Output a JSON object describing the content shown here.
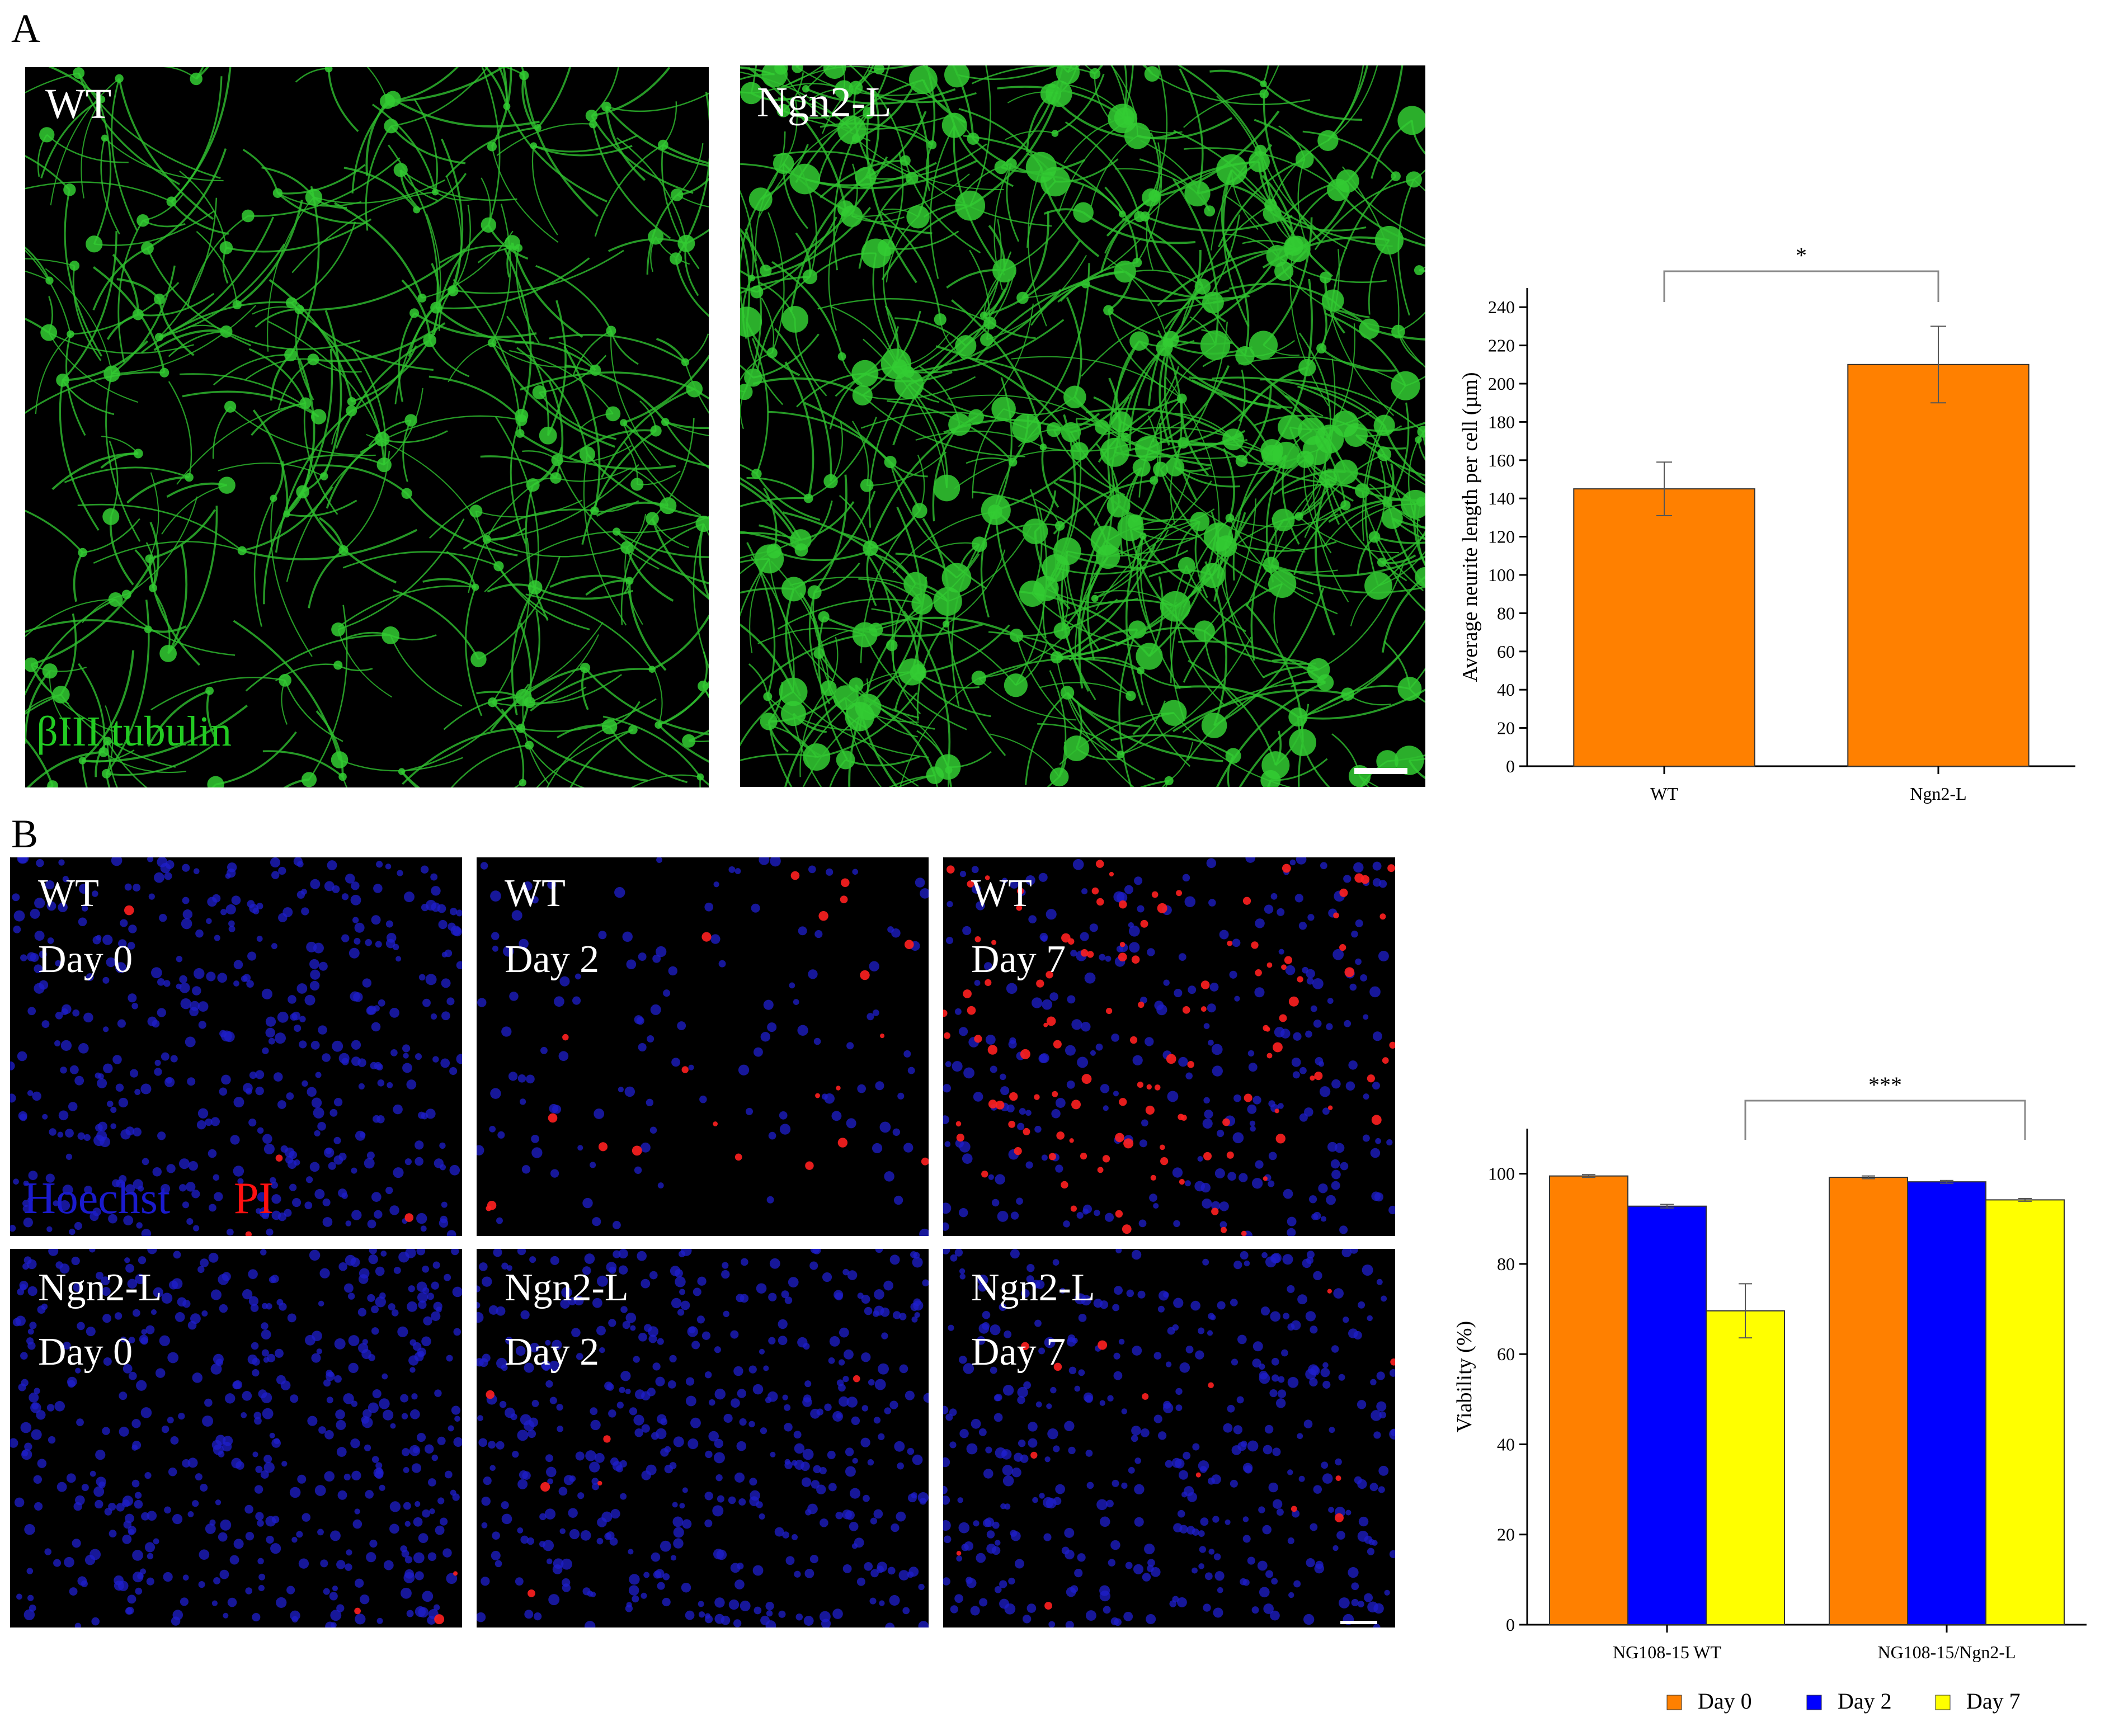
{
  "panels": {
    "A": {
      "letter": "A",
      "images": [
        {
          "label": "WT",
          "stain": "βIII tubulin",
          "stain_color": "#22cc22",
          "scale_bar": false,
          "density": "sparse"
        },
        {
          "label": "Ngn2-L",
          "stain": "",
          "stain_color": "#22cc22",
          "scale_bar": true,
          "density": "dense"
        }
      ]
    },
    "B": {
      "letter": "B",
      "images": [
        {
          "line1": "WT",
          "line2": "Day 0",
          "stain_blue": "Hoechst",
          "stain_red": "PI",
          "dead_level": "very low",
          "scale_bar": false
        },
        {
          "line1": "WT",
          "line2": "Day 2",
          "stain_blue": "",
          "stain_red": "",
          "dead_level": "moderate",
          "scale_bar": false
        },
        {
          "line1": "WT",
          "line2": "Day 7",
          "stain_blue": "",
          "stain_red": "",
          "dead_level": "high",
          "scale_bar": false
        },
        {
          "line1": "Ngn2-L",
          "line2": "Day 0",
          "stain_blue": "",
          "stain_red": "",
          "dead_level": "very low",
          "scale_bar": false
        },
        {
          "line1": "Ngn2-L",
          "line2": "Day 2",
          "stain_blue": "",
          "stain_red": "",
          "dead_level": "very low",
          "scale_bar": false
        },
        {
          "line1": "Ngn2-L",
          "line2": "Day 7",
          "stain_blue": "",
          "stain_red": "",
          "dead_level": "low",
          "scale_bar": true
        }
      ]
    }
  },
  "colors": {
    "orange": "#ff8000",
    "blue": "#0000ff",
    "yellow": "#ffff00",
    "hoechst": "#1a1acc",
    "pi": "#ff1010"
  },
  "chart_data": [
    {
      "type": "bar",
      "categories": [
        "WT",
        "Ngn2-L"
      ],
      "values": [
        145,
        210
      ],
      "errors": [
        14,
        20
      ],
      "color": "#ff8000",
      "title": "",
      "xlabel": "",
      "ylabel": "Average neurite length per cell (µm)",
      "ylim": [
        0,
        250
      ],
      "yticks": [
        0,
        20,
        40,
        60,
        80,
        100,
        120,
        140,
        160,
        180,
        200,
        220,
        240
      ],
      "significance": {
        "from": "WT",
        "to": "Ngn2-L",
        "label": "*"
      },
      "grid": false
    },
    {
      "type": "bar",
      "categories": [
        "NG108-15 WT",
        "NG108-15/Ngn2-L"
      ],
      "series": [
        {
          "name": "Day 0",
          "color": "#ff8000",
          "values": [
            99.5,
            99.2
          ],
          "errors": [
            0.3,
            0.3
          ]
        },
        {
          "name": "Day 2",
          "color": "#0000ff",
          "values": [
            92.8,
            98.2
          ],
          "errors": [
            0.4,
            0.3
          ]
        },
        {
          "name": "Day 7",
          "color": "#ffff00",
          "values": [
            69.6,
            94.2
          ],
          "errors": [
            6,
            0.3
          ]
        }
      ],
      "title": "",
      "xlabel": "",
      "ylabel": "Viability (%)",
      "ylim": [
        0,
        110
      ],
      "yticks": [
        0,
        20,
        40,
        60,
        80,
        100
      ],
      "significance": {
        "label": "***"
      },
      "legend": "bottom",
      "grid": false
    }
  ]
}
